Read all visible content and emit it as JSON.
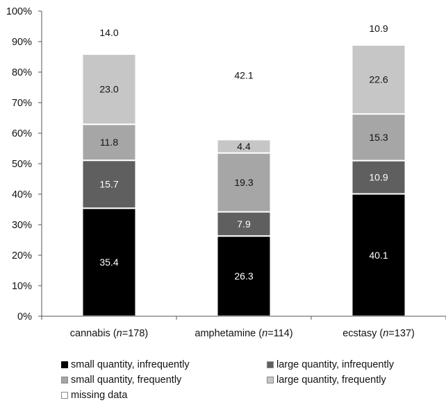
{
  "chart_data": {
    "type": "bar",
    "stacked": true,
    "categories": [
      "cannabis",
      "amphetamine",
      "ecstasy"
    ],
    "category_n": [
      "178",
      "114",
      "137"
    ],
    "n_prefix": "n",
    "n_sep": "=",
    "series": [
      {
        "name": "small quantity, infrequently",
        "color": "#000000",
        "label_color": "#ffffff",
        "values": [
          35.4,
          26.3,
          40.1
        ]
      },
      {
        "name": "large quantity, infrequently",
        "color": "#5f5f5f",
        "label_color": "#ffffff",
        "values": [
          15.7,
          7.9,
          10.9
        ]
      },
      {
        "name": "small quantity, frequently",
        "color": "#a6a6a6",
        "label_color": "#111111",
        "values": [
          11.8,
          19.3,
          15.3
        ]
      },
      {
        "name": "large quantity, frequently",
        "color": "#c6c6c6",
        "label_color": "#111111",
        "values": [
          23.0,
          4.4,
          22.6
        ]
      },
      {
        "name": "missing data",
        "color": "#ffffff",
        "label_color": "#111111",
        "values": [
          14.0,
          42.1,
          10.9
        ]
      }
    ],
    "ylim": [
      0,
      100
    ],
    "yticks": [
      "0%",
      "10%",
      "20%",
      "30%",
      "40%",
      "50%",
      "60%",
      "70%",
      "80%",
      "90%",
      "100%"
    ],
    "grid": false,
    "legend_position": "bottom"
  }
}
